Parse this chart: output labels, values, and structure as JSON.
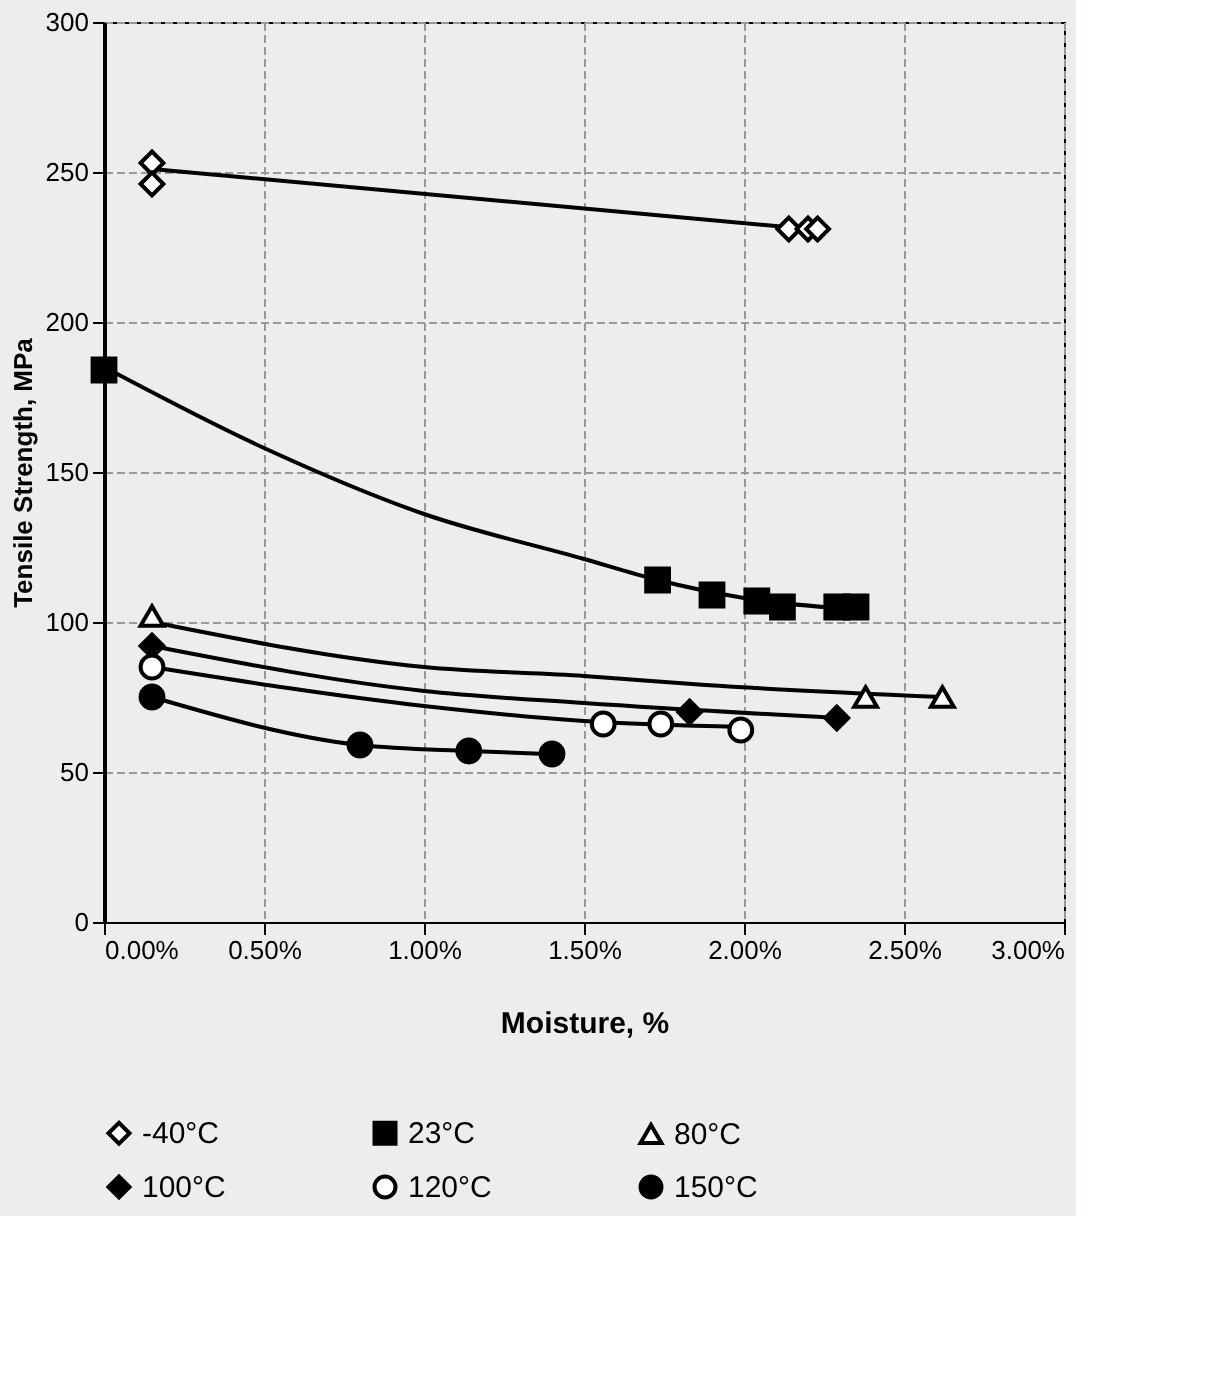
{
  "chart_data": {
    "type": "scatter",
    "xlabel": "Moisture, %",
    "ylabel": "Tensile Strength, MPa",
    "xlim": [
      0,
      3
    ],
    "ylim": [
      0,
      300
    ],
    "xticks": [
      {
        "value": 0,
        "label": "0.00%"
      },
      {
        "value": 0.5,
        "label": "0.50%"
      },
      {
        "value": 1,
        "label": "1.00%"
      },
      {
        "value": 1.5,
        "label": "1.50%"
      },
      {
        "value": 2,
        "label": "2.00%"
      },
      {
        "value": 2.5,
        "label": "2.50%"
      },
      {
        "value": 3,
        "label": "3.00%"
      }
    ],
    "yticks": [
      0,
      50,
      100,
      150,
      200,
      250,
      300
    ],
    "grid": true,
    "legend": "bottom",
    "series": [
      {
        "name": "-40°C",
        "color": "#ffffff",
        "marker": "diamond",
        "x": [
          0.15,
          0.15,
          2.14,
          2.2,
          2.23
        ],
        "values": [
          253,
          246,
          231,
          231,
          231
        ]
      },
      {
        "name": "23°C",
        "color": "#000000",
        "marker": "square",
        "x": [
          0.0,
          1.73,
          1.9,
          2.04,
          2.12,
          2.29,
          2.35
        ],
        "values": [
          184,
          114,
          109,
          107,
          105,
          105,
          105
        ]
      },
      {
        "name": "80°C",
        "color": "#ffffff",
        "marker": "triangle",
        "x": [
          0.15,
          2.38,
          2.62
        ],
        "values": [
          102,
          75,
          75
        ]
      },
      {
        "name": "100°C",
        "color": "#000000",
        "marker": "diamond",
        "x": [
          0.15,
          1.83,
          2.29
        ],
        "values": [
          92,
          70,
          68
        ]
      },
      {
        "name": "120°C",
        "color": "#ffffff",
        "marker": "circle",
        "x": [
          0.15,
          1.56,
          1.74,
          1.99
        ],
        "values": [
          85,
          66,
          66,
          64
        ]
      },
      {
        "name": "150°C",
        "color": "#000000",
        "marker": "circle",
        "x": [
          0.15,
          0.8,
          1.14,
          1.4
        ],
        "values": [
          75,
          59,
          57,
          56
        ]
      },
      {
        "type": "line",
        "color": "#000000",
        "x": [
          0.15,
          2.2
        ],
        "values": [
          251,
          231
        ]
      },
      {
        "type": "line",
        "color": "#000000",
        "x": [
          0.0,
          0.5,
          1.0,
          1.5,
          1.73,
          2.0,
          2.37
        ],
        "values": [
          185,
          158,
          136,
          121,
          114,
          108,
          104
        ]
      },
      {
        "type": "line",
        "color": "#000000",
        "x": [
          0.15,
          1.0,
          1.5,
          1.88,
          2.62
        ],
        "values": [
          100,
          85,
          82,
          79,
          75
        ]
      },
      {
        "type": "line",
        "color": "#000000",
        "x": [
          0.15,
          1.0,
          1.5,
          2.29
        ],
        "values": [
          92,
          77,
          73,
          68
        ]
      },
      {
        "type": "line",
        "color": "#000000",
        "x": [
          0.15,
          1.0,
          1.5,
          2.0
        ],
        "values": [
          85,
          72,
          67,
          65
        ]
      },
      {
        "type": "line",
        "color": "#000000",
        "x": [
          0.15,
          0.8,
          1.14,
          1.4
        ],
        "values": [
          75,
          59,
          57,
          56
        ]
      }
    ]
  }
}
